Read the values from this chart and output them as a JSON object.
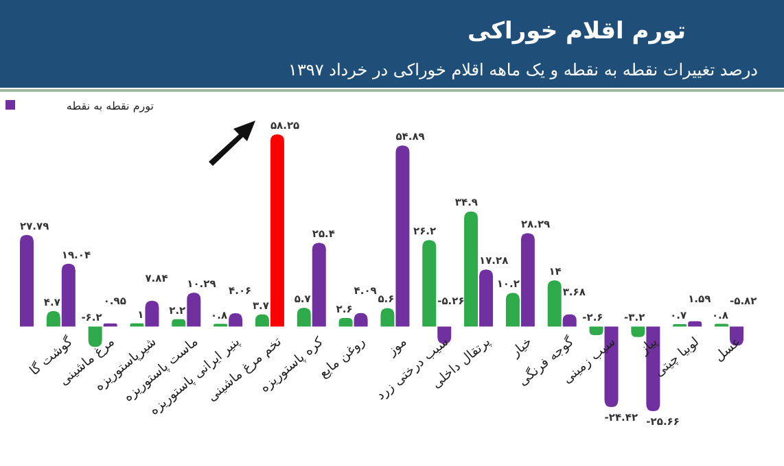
{
  "chart_data": {
    "type": "bar",
    "title": "تورم اقلام خوراکی",
    "subtitle": "درصد تغییرات نقطه به نقطه و یک ماهه اقلام خوراکی در خرداد ۱۳۹۷",
    "categories": [
      null,
      "گوشت گا",
      "مرغ ماشینی",
      "شیرپاستوریزه",
      "ماست پاستوریزه",
      "پنیر ایرانی پاستوریزه",
      "تخم مرغ ماشینی",
      "کره پاستوریزه",
      "روغن مایع",
      "موز",
      "سیب درختی زرد",
      "پرتقال داخلی",
      "خیار",
      "گوجه فرنگی",
      "سیب زمینی",
      "پیاز",
      "لوبیا چیتی",
      "عسل"
    ],
    "series": [
      {
        "color": "#2eaa4a",
        "values": [
          null,
          4.7,
          -6.2,
          1,
          2.2,
          0.8,
          3.7,
          5.7,
          2.6,
          5.6,
          26.2,
          34.9,
          10.2,
          14,
          -2.6,
          -3.2,
          0.7,
          0.8
        ],
        "value_labels": [
          null,
          "۴.۷",
          "-۶.۲",
          "۱",
          "۲.۲",
          "۰.۸",
          "۳.۷",
          "۵.۷",
          "۲.۶",
          "۵.۶",
          "۲۶.۲",
          "۳۴.۹",
          "۱۰.۲",
          "۱۴",
          "-۲.۶",
          "-۳.۲",
          "۰.۷",
          "۰.۸"
        ]
      },
      {
        "name": "تورم نقطه به نقطه",
        "color": "#7030a0",
        "colors": [
          "#7030a0",
          "#7030a0",
          "#7030a0",
          "#7030a0",
          "#7030a0",
          "#7030a0",
          "#ff0000",
          "#7030a0",
          "#7030a0",
          "#7030a0",
          "#7030a0",
          "#7030a0",
          "#7030a0",
          "#7030a0",
          "#7030a0",
          "#7030a0",
          "#7030a0",
          "#7030a0"
        ],
        "values": [
          27.79,
          19.04,
          0.95,
          7.84,
          10.29,
          4.06,
          58.25,
          25.4,
          4.09,
          54.89,
          -5.26,
          17.28,
          28.29,
          3.68,
          -24.42,
          -25.66,
          1.59,
          -5.82
        ],
        "value_labels": [
          "۲۷.۷۹",
          "۱۹.۰۴",
          "۰.۹۵",
          "۷.۸۴",
          "۱۰.۲۹",
          "۴.۰۶",
          "۵۸.۲۵",
          "۲۵.۴",
          "۴.۰۹",
          "۵۴.۸۹",
          "-۵.۲۶",
          "۱۷.۲۸",
          "۲۸.۲۹",
          "۳.۶۸",
          "-۲۴.۴۲",
          "-۲۵.۶۶",
          "۱.۵۹",
          "-۵.۸۲"
        ]
      }
    ],
    "legend": "top left"
  }
}
